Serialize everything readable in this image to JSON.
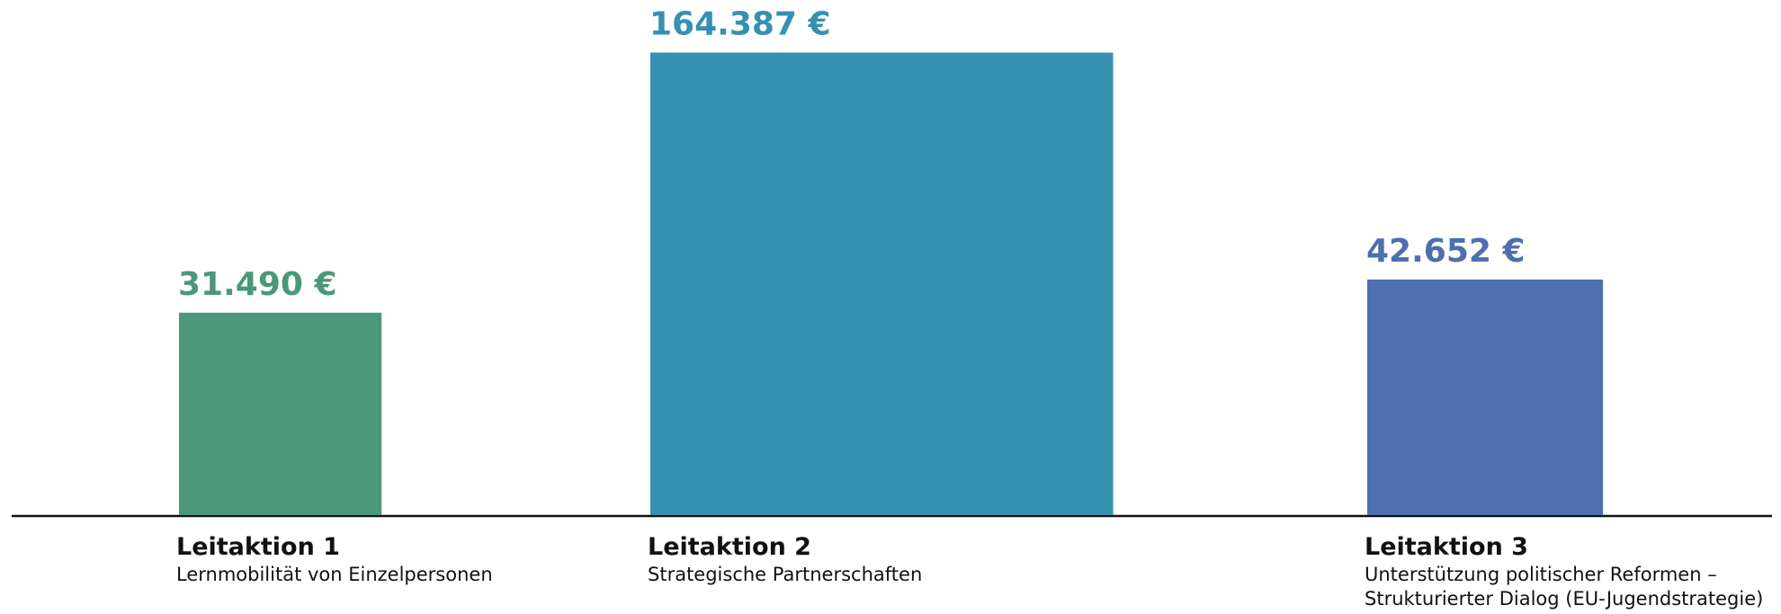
{
  "chart_data": {
    "type": "bar",
    "categories": [
      "Leitaktion 1",
      "Leitaktion 2",
      "Leitaktion 3"
    ],
    "descriptions": [
      [
        "Lernmobilität von Einzelpersonen"
      ],
      [
        "Strategische Partnerschaften"
      ],
      [
        "Unterstützung politischer Reformen –",
        "Strukturierter Dialog (EU-Jugendstrategie)"
      ]
    ],
    "values": [
      31490,
      164387,
      42652
    ],
    "value_labels": [
      "31.490 €",
      "164.387 €",
      "42.652 €"
    ],
    "colors": [
      "#4a9879",
      "#3690b2",
      "#4d6fae"
    ]
  }
}
